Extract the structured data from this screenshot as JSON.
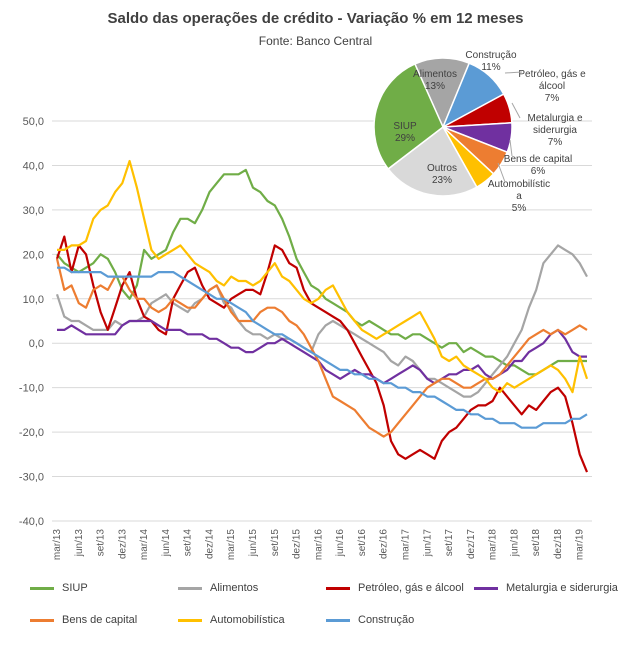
{
  "chart_data": [
    {
      "type": "line",
      "title": "Saldo das operações de crédito - Variação % em 12 meses",
      "subtitle": "Fonte: Banco Central",
      "ylim": [
        -40,
        50
      ],
      "yticks": [
        "50,0",
        "40,0",
        "30,0",
        "20,0",
        "10,0",
        "0,0",
        "-10,0",
        "-20,0",
        "-30,0",
        "-40,0"
      ],
      "ytick_values": [
        50,
        40,
        30,
        20,
        10,
        0,
        -10,
        -20,
        -30,
        -40
      ],
      "xtick_labels": [
        "mar/13",
        "jun/13",
        "set/13",
        "dez/13",
        "mar/14",
        "jun/14",
        "set/14",
        "dez/14",
        "mar/15",
        "jun/15",
        "set/15",
        "dez/15",
        "mar/16",
        "jun/16",
        "set/16",
        "dez/16",
        "mar/17",
        "jun/17",
        "set/17",
        "dez/17",
        "mar/18",
        "jun/18",
        "set/18",
        "dez/18",
        "mar/19"
      ],
      "grid": true,
      "legend_position": "bottom",
      "series": [
        {
          "name": "SIUP",
          "color": "#70AD47",
          "values": [
            20,
            18,
            17,
            16,
            17,
            18,
            20,
            19,
            16,
            12,
            10,
            13,
            21,
            19,
            20,
            21,
            25,
            28,
            28,
            27,
            30,
            34,
            36,
            38,
            38,
            38,
            39,
            35,
            34,
            32,
            31,
            28,
            24,
            19,
            16,
            13,
            12,
            10,
            9,
            8,
            7,
            5,
            4,
            5,
            4,
            3,
            2,
            2,
            1,
            2,
            2,
            1,
            0,
            -1,
            0,
            0,
            -2,
            -1,
            -2,
            -3,
            -3,
            -4,
            -5,
            -5,
            -6,
            -7,
            -7,
            -6,
            -5,
            -4,
            -4,
            -4,
            -4,
            -4
          ]
        },
        {
          "name": "Alimentos",
          "color": "#A5A5A5",
          "values": [
            11,
            6,
            5,
            5,
            4,
            3,
            3,
            3,
            5,
            4,
            5,
            5,
            6,
            9,
            10,
            11,
            9,
            8,
            7,
            9,
            10,
            12,
            13,
            9,
            8,
            5,
            3,
            2,
            2,
            1,
            2,
            1,
            1,
            0,
            -1,
            -2,
            2,
            4,
            5,
            4,
            3,
            2,
            1,
            0,
            -1,
            -2,
            -4,
            -5,
            -3,
            -4,
            -6,
            -8,
            -8,
            -9,
            -10,
            -11,
            -12,
            -12,
            -11,
            -9,
            -7,
            -5,
            -3,
            0,
            3,
            8,
            12,
            18,
            20,
            22,
            21,
            20,
            18,
            15
          ]
        },
        {
          "name": "Petróleo, gás e álcool",
          "color": "#C00000",
          "values": [
            19,
            24,
            16,
            22,
            20,
            13,
            7,
            3,
            8,
            13,
            16,
            10,
            6,
            5,
            3,
            2,
            10,
            13,
            16,
            17,
            13,
            10,
            9,
            8,
            10,
            11,
            12,
            12,
            11,
            16,
            22,
            21,
            18,
            17,
            12,
            9,
            8,
            7,
            6,
            5,
            3,
            0,
            -3,
            -6,
            -9,
            -14,
            -22,
            -25,
            -26,
            -25,
            -24,
            -25,
            -26,
            -22,
            -20,
            -19,
            -17,
            -15,
            -14,
            -14,
            -13,
            -10,
            -12,
            -14,
            -16,
            -14,
            -15,
            -13,
            -11,
            -10,
            -12,
            -18,
            -25,
            -29
          ]
        },
        {
          "name": "Metalurgia e siderurgia",
          "color": "#7030A0",
          "values": [
            3,
            3,
            4,
            3,
            2,
            2,
            2,
            2,
            2,
            4,
            5,
            5,
            5,
            5,
            4,
            3,
            3,
            3,
            2,
            2,
            2,
            1,
            1,
            0,
            -1,
            -1,
            -2,
            -2,
            -1,
            0,
            0,
            1,
            0,
            -1,
            -2,
            -3,
            -4,
            -6,
            -7,
            -8,
            -7,
            -6,
            -7,
            -7,
            -8,
            -9,
            -8,
            -7,
            -6,
            -5,
            -6,
            -8,
            -9,
            -8,
            -7,
            -7,
            -6,
            -6,
            -5,
            -7,
            -8,
            -7,
            -6,
            -4,
            -4,
            -2,
            -1,
            0,
            2,
            3,
            1,
            -2,
            -3,
            -3
          ]
        },
        {
          "name": "Bens de capital",
          "color": "#ED7D31",
          "values": [
            19,
            12,
            13,
            9,
            8,
            12,
            13,
            12,
            15,
            15,
            12,
            10,
            10,
            8,
            7,
            8,
            10,
            9,
            8,
            8,
            10,
            12,
            13,
            10,
            7,
            5,
            5,
            5,
            7,
            8,
            8,
            7,
            5,
            4,
            2,
            -1,
            -4,
            -8,
            -12,
            -13,
            -14,
            -15,
            -17,
            -19,
            -20,
            -21,
            -20,
            -18,
            -16,
            -14,
            -12,
            -10,
            -9,
            -8,
            -8,
            -9,
            -10,
            -10,
            -9,
            -8,
            -8,
            -7,
            -5,
            -3,
            -1,
            1,
            2,
            3,
            2,
            3,
            2,
            3,
            4,
            3
          ]
        },
        {
          "name": "Automobilística",
          "color": "#FFC000",
          "values": [
            21,
            21,
            22,
            22,
            23,
            28,
            30,
            31,
            34,
            36,
            41,
            35,
            28,
            21,
            19,
            20,
            21,
            22,
            20,
            18,
            17,
            16,
            14,
            13,
            15,
            14,
            14,
            13,
            14,
            16,
            18,
            15,
            14,
            12,
            10,
            9,
            10,
            12,
            13,
            10,
            7,
            5,
            3,
            2,
            1,
            2,
            3,
            4,
            5,
            6,
            7,
            4,
            1,
            -3,
            -4,
            -3,
            -5,
            -6,
            -7,
            -8,
            -10,
            -11,
            -9,
            -10,
            -9,
            -8,
            -7,
            -6,
            -5,
            -6,
            -8,
            -11,
            -3,
            -8
          ]
        },
        {
          "name": "Construção",
          "color": "#5B9BD5",
          "values": [
            17,
            17,
            16,
            16,
            16,
            16,
            16,
            15,
            15,
            15,
            15,
            15,
            15,
            15,
            16,
            16,
            16,
            15,
            14,
            13,
            12,
            11,
            10,
            10,
            9,
            8,
            7,
            5,
            4,
            3,
            2,
            2,
            1,
            0,
            -1,
            -2,
            -3,
            -4,
            -5,
            -6,
            -6,
            -7,
            -7,
            -8,
            -8,
            -9,
            -9,
            -10,
            -10,
            -11,
            -11,
            -12,
            -12,
            -13,
            -14,
            -15,
            -15,
            -16,
            -16,
            -17,
            -17,
            -18,
            -18,
            -18,
            -19,
            -19,
            -19,
            -18,
            -18,
            -18,
            -18,
            -17,
            -17,
            -16
          ]
        }
      ]
    },
    {
      "type": "pie",
      "labels": [
        "SIUP",
        "Alimentos",
        "Construção",
        "Petróleo, gás e álcool",
        "Metalurgia e siderurgia",
        "Bens de capital",
        "Automobilística",
        "Outros"
      ],
      "values": [
        29,
        13,
        11,
        7,
        7,
        6,
        5,
        23
      ],
      "value_labels": [
        "29%",
        "13%",
        "11%",
        "7%",
        "7%",
        "6%",
        "5%",
        "23%"
      ],
      "colors": [
        "#70AD47",
        "#A5A5A5",
        "#5B9BD5",
        "#C00000",
        "#7030A0",
        "#ED7D31",
        "#FFC000",
        "#D9D9D9"
      ]
    }
  ],
  "legend": [
    {
      "label": "SIUP",
      "color": "#70AD47"
    },
    {
      "label": "Alimentos",
      "color": "#A5A5A5"
    },
    {
      "label": "Petróleo, gás e álcool",
      "color": "#C00000"
    },
    {
      "label": "Metalurgia e siderurgia",
      "color": "#7030A0"
    },
    {
      "label": "Bens de capital",
      "color": "#ED7D31"
    },
    {
      "label": "Automobilística",
      "color": "#FFC000"
    },
    {
      "label": "Construção",
      "color": "#5B9BD5"
    }
  ]
}
